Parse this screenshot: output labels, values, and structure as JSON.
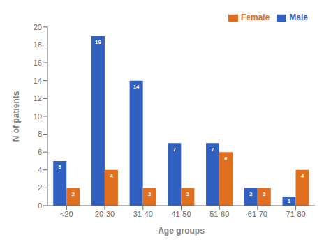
{
  "chart_data": {
    "type": "bar",
    "categories": [
      "<20",
      "20-30",
      "31-40",
      "41-50",
      "51-60",
      "61-70",
      "71-80"
    ],
    "series": [
      {
        "name": "Male",
        "color": "#3060c0",
        "values": [
          5,
          19,
          14,
          7,
          7,
          2,
          1
        ]
      },
      {
        "name": "Female",
        "color": "#e07020",
        "values": [
          2,
          4,
          2,
          2,
          6,
          2,
          4
        ]
      }
    ],
    "xlabel": "Age groups",
    "ylabel": "N of patients",
    "ylim": [
      0,
      20
    ],
    "yticks": [
      0,
      2,
      4,
      6,
      8,
      10,
      12,
      14,
      16,
      18,
      20
    ],
    "legend": "upper right",
    "grid": false,
    "data_labels": true
  }
}
